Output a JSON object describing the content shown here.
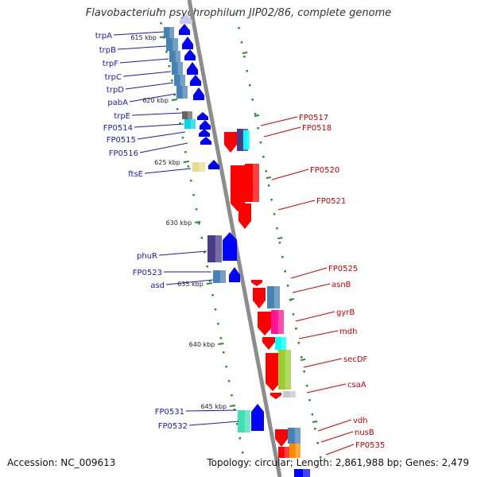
{
  "title": "Flavobacterium psychrophilum JIP02/86, complete genome",
  "footer": {
    "accession": "Accession: NC_009613",
    "summary": "Topology: circular; Length: 2,861,988 bp; Genes: 2,479"
  },
  "colors": {
    "backbone": "#8c8c8c",
    "tick": "#2e8b2e",
    "label": "#1a1ab8",
    "label_right": "#cc0000"
  },
  "ruler": [
    {
      "label": "615 kbp"
    },
    {
      "label": "620 kbp"
    },
    {
      "label": "625 kbp"
    },
    {
      "label": "630 kbp"
    },
    {
      "label": "635 kbp"
    },
    {
      "label": "640 kbp"
    },
    {
      "label": "645 kbp"
    }
  ],
  "left_genes": [
    {
      "name": "trpA",
      "color": "#4682b4"
    },
    {
      "name": "trpB",
      "color": "#4682b4"
    },
    {
      "name": "trpF",
      "color": "#4682b4"
    },
    {
      "name": "trpC",
      "color": "#4682b4"
    },
    {
      "name": "trpD",
      "color": "#4682b4"
    },
    {
      "name": "pabA",
      "color": "#4682b4"
    },
    {
      "name": "trpE",
      "color": "#666666"
    },
    {
      "name": "FP0514",
      "color": "#00d8e8"
    },
    {
      "name": "FP0515",
      "color": "#0000ff"
    },
    {
      "name": "FP0516",
      "color": "#0000ff"
    },
    {
      "name": "ftsE",
      "color": "#e8dc94"
    },
    {
      "name": "phuR",
      "color": "#483d8b"
    },
    {
      "name": "FP0523",
      "color": "#4682b4"
    },
    {
      "name": "asd",
      "color": "#0000ff"
    },
    {
      "name": "FP0531",
      "color": "#40e0b0"
    },
    {
      "name": "FP0532",
      "color": "#0000ff"
    }
  ],
  "right_genes": [
    {
      "name": "FP0517",
      "color": "#0000ff"
    },
    {
      "name": "FP0518",
      "color": "#483d8b"
    },
    {
      "name": "FP0520",
      "color": "#ff0000"
    },
    {
      "name": "FP0521",
      "color": "#ff0000"
    },
    {
      "name": "FP0525",
      "color": "#ff0000"
    },
    {
      "name": "asnB",
      "color": "#4682b4"
    },
    {
      "name": "gyrB",
      "color": "#ff1493"
    },
    {
      "name": "mdh",
      "color": "#00ffff"
    },
    {
      "name": "secDF",
      "color": "#9acd32"
    },
    {
      "name": "csaA",
      "color": "#c8c8c8"
    },
    {
      "name": "vdh",
      "color": "#4682b4"
    },
    {
      "name": "nusB",
      "color": "#ff8c00"
    },
    {
      "name": "FP0535",
      "color": "#ff0000"
    }
  ]
}
